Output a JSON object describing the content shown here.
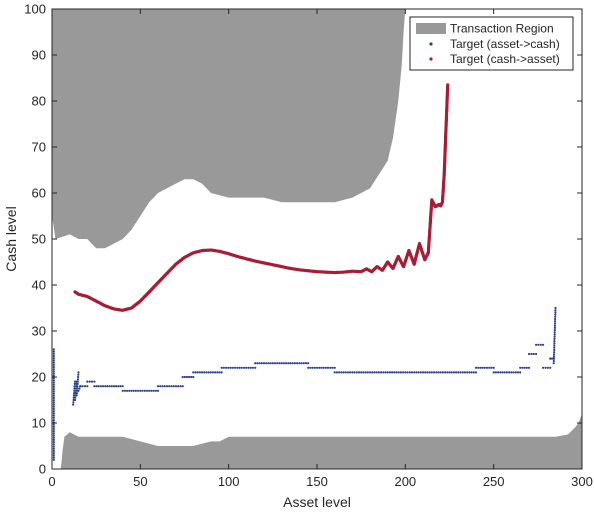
{
  "chart_data": {
    "type": "scatter",
    "title": "",
    "xlabel": "Asset level",
    "ylabel": "Cash level",
    "xlim": [
      0,
      300
    ],
    "ylim": [
      0,
      100
    ],
    "xticks": [
      "0",
      "50",
      "100",
      "150",
      "200",
      "250",
      "300"
    ],
    "yticks": [
      "0",
      "10",
      "20",
      "30",
      "40",
      "50",
      "60",
      "70",
      "80",
      "90",
      "100"
    ],
    "grid": false,
    "legend_position": "top-right",
    "legend": [
      {
        "label": "Transaction Region",
        "kind": "area",
        "color": "#999999"
      },
      {
        "label": "Target (asset->cash)",
        "kind": "marker",
        "color": "#2b3f8f"
      },
      {
        "label": "Target (cash->asset)",
        "kind": "marker",
        "color": "#a81c35"
      }
    ],
    "regions": {
      "upper": {
        "name": "Transaction Region",
        "color": "#999999",
        "boundary": [
          [
            0,
            55
          ],
          [
            2,
            50
          ],
          [
            10,
            51
          ],
          [
            15,
            50
          ],
          [
            20,
            50
          ],
          [
            25,
            48
          ],
          [
            30,
            48
          ],
          [
            35,
            49
          ],
          [
            40,
            50
          ],
          [
            45,
            52
          ],
          [
            50,
            55
          ],
          [
            55,
            58
          ],
          [
            60,
            60
          ],
          [
            65,
            61
          ],
          [
            70,
            62
          ],
          [
            75,
            63
          ],
          [
            80,
            63
          ],
          [
            85,
            62
          ],
          [
            90,
            60
          ],
          [
            100,
            59
          ],
          [
            110,
            59
          ],
          [
            120,
            59
          ],
          [
            130,
            58
          ],
          [
            140,
            58
          ],
          [
            150,
            58
          ],
          [
            160,
            58
          ],
          [
            170,
            59
          ],
          [
            180,
            61
          ],
          [
            185,
            64
          ],
          [
            190,
            67
          ],
          [
            193,
            72
          ],
          [
            196,
            80
          ],
          [
            198,
            88
          ],
          [
            199,
            95
          ],
          [
            200,
            100
          ]
        ]
      },
      "lower": {
        "name": "Transaction Region",
        "color": "#999999",
        "boundary": [
          [
            5,
            0
          ],
          [
            6,
            4
          ],
          [
            7,
            7
          ],
          [
            10,
            8
          ],
          [
            15,
            7
          ],
          [
            40,
            7
          ],
          [
            50,
            6
          ],
          [
            60,
            5
          ],
          [
            80,
            5
          ],
          [
            90,
            6
          ],
          [
            95,
            6
          ],
          [
            100,
            7
          ],
          [
            120,
            7
          ],
          [
            140,
            7
          ],
          [
            200,
            7
          ],
          [
            250,
            7
          ],
          [
            285,
            7
          ],
          [
            292,
            7.5
          ],
          [
            296,
            9
          ],
          [
            298,
            10
          ],
          [
            299,
            11
          ],
          [
            300,
            12
          ]
        ]
      }
    },
    "series": [
      {
        "name": "Target (asset->cash)",
        "color": "#2b3f8f",
        "steps": [
          [
            1,
            1,
            2,
            26
          ],
          [
            12,
            13,
            14,
            19
          ],
          [
            13,
            14,
            15,
            19
          ],
          [
            14,
            15,
            16,
            21
          ],
          [
            15,
            16,
            17,
            18
          ],
          [
            16,
            20,
            18,
            18
          ],
          [
            20,
            24,
            19,
            19
          ],
          [
            24,
            40,
            18,
            18
          ],
          [
            40,
            60,
            17,
            17
          ],
          [
            60,
            74,
            18,
            18
          ],
          [
            74,
            80,
            20,
            20
          ],
          [
            80,
            96,
            21,
            21
          ],
          [
            96,
            115,
            22,
            22
          ],
          [
            115,
            145,
            23,
            23
          ],
          [
            145,
            160,
            22,
            22
          ],
          [
            160,
            240,
            21,
            21
          ],
          [
            240,
            250,
            22,
            22
          ],
          [
            250,
            265,
            21,
            21
          ],
          [
            265,
            270,
            22,
            22
          ],
          [
            270,
            274,
            25,
            25
          ],
          [
            274,
            278,
            27,
            27
          ],
          [
            278,
            282,
            22,
            22
          ],
          [
            282,
            284,
            24,
            24
          ],
          [
            284,
            285,
            23,
            35
          ]
        ]
      },
      {
        "name": "Target (cash->asset)",
        "color": "#a81c35",
        "x": [
          13,
          15,
          20,
          25,
          30,
          35,
          40,
          45,
          50,
          55,
          60,
          65,
          70,
          75,
          80,
          85,
          90,
          95,
          100,
          105,
          110,
          115,
          120,
          125,
          130,
          135,
          140,
          145,
          150,
          155,
          160,
          165,
          170,
          175,
          178,
          181,
          184,
          187,
          190,
          193,
          196,
          199,
          202,
          205,
          208,
          211,
          213,
          215,
          217,
          219,
          220,
          221,
          222,
          223,
          224
        ],
        "y": [
          38.5,
          38,
          37.5,
          36.5,
          35.5,
          34.8,
          34.5,
          35,
          36.5,
          38.5,
          40.5,
          42.5,
          44.5,
          46,
          47,
          47.5,
          47.6,
          47.3,
          46.8,
          46.2,
          45.7,
          45.2,
          44.8,
          44.4,
          44,
          43.6,
          43.3,
          43.1,
          42.9,
          42.8,
          42.7,
          42.8,
          43,
          42.9,
          43.5,
          42.9,
          44,
          43.2,
          45,
          43.6,
          46.2,
          44,
          47.5,
          44.5,
          49,
          45.5,
          47,
          58.5,
          57,
          57.5,
          57.2,
          58,
          64,
          74,
          83.5
        ]
      }
    ]
  }
}
